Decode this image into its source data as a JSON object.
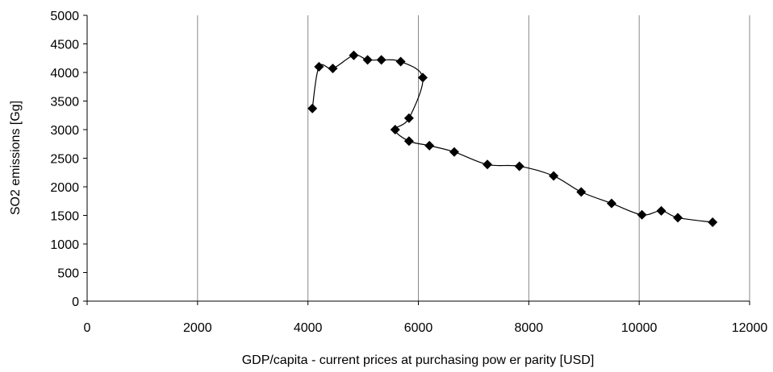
{
  "chart_data": {
    "type": "scatter",
    "title": "",
    "xlabel": "GDP/capita - current prices at purchasing pow er parity [USD]",
    "ylabel": "SO2 emissions [Gg]",
    "xlim": [
      0,
      12000
    ],
    "ylim": [
      0,
      5000
    ],
    "xticks": [
      0,
      2000,
      4000,
      6000,
      8000,
      10000,
      12000
    ],
    "yticks": [
      0,
      500,
      1000,
      1500,
      2000,
      2500,
      3000,
      3500,
      4000,
      4500,
      5000
    ],
    "grid": "vertical",
    "marker": "diamond",
    "line": "smoothed",
    "series": [
      {
        "x": [
          4080,
          4200,
          4450,
          4830,
          5080,
          5330,
          5680,
          6080,
          5830,
          5580,
          5830,
          6200,
          6650,
          7250,
          7830,
          8450,
          8950,
          9500,
          10050,
          10400,
          10700,
          11330
        ],
        "y": [
          3370,
          4100,
          4070,
          4300,
          4220,
          4220,
          4190,
          3910,
          3200,
          3000,
          2800,
          2720,
          2610,
          2390,
          2360,
          2190,
          1910,
          1710,
          1510,
          1580,
          1460,
          1380
        ]
      }
    ]
  }
}
